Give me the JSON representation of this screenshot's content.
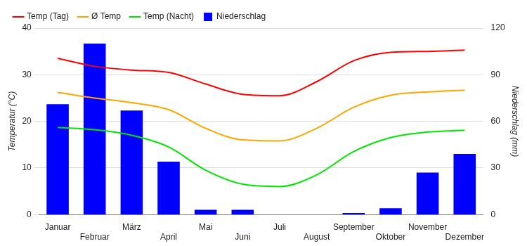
{
  "chart_data": {
    "type": "bar",
    "categories": [
      "Januar",
      "Februar",
      "März",
      "April",
      "Mai",
      "Juni",
      "Juli",
      "August",
      "September",
      "Oktober",
      "November",
      "Dezember"
    ],
    "series": [
      {
        "name": "Niederschlag",
        "type": "bar",
        "color": "#0000ff",
        "axis": "y2",
        "values": [
          71,
          110,
          67,
          34,
          3,
          3,
          0,
          0,
          1,
          4,
          27,
          39
        ]
      },
      {
        "name": "Temp (Tag)",
        "type": "line",
        "color": "#ff0000",
        "values": [
          33.5,
          31.8,
          31,
          30.5,
          28,
          25.8,
          25.5,
          28.5,
          33,
          34.8,
          35,
          35.3
        ]
      },
      {
        "name": "Ø Temp",
        "type": "line",
        "color": "#ffa500",
        "values": [
          26.2,
          25,
          24,
          22.5,
          18.5,
          16,
          15.8,
          18.5,
          23,
          25.6,
          26.3,
          26.7
        ]
      },
      {
        "name": "Temp (Nacht)",
        "type": "line",
        "color": "#00e600",
        "values": [
          18.7,
          18.2,
          17,
          14.5,
          9.5,
          6.5,
          6,
          8.5,
          13.5,
          16.5,
          17.7,
          18.1
        ]
      }
    ],
    "y_label": "Temperatur (°C)",
    "y2_label": "Niederschlag (mm)",
    "ylim": [
      0,
      40
    ],
    "yticks": [
      0,
      10,
      20,
      30,
      40
    ],
    "y2lim": [
      0,
      120
    ],
    "y2ticks": [
      0,
      30,
      60,
      90,
      120
    ],
    "grid": true,
    "legend": "top-left"
  }
}
